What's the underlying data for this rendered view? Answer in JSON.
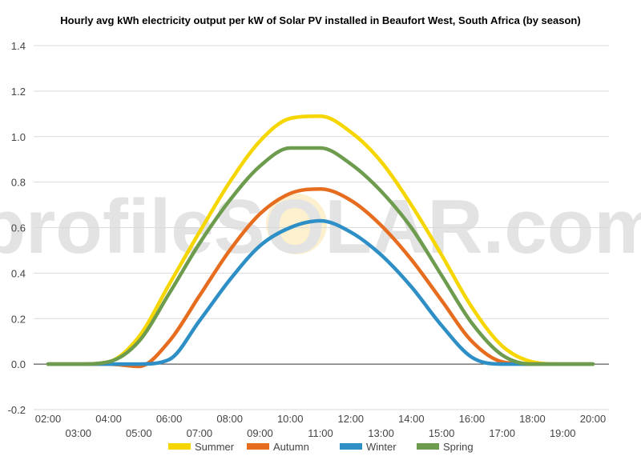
{
  "chart_data": {
    "type": "line",
    "title": "Hourly avg kWh electricity output per kW of Solar PV installed in Beaufort West, South Africa (by season)",
    "watermark": "profileSOLAR.com",
    "x_labels": [
      "02:00",
      "03:00",
      "04:00",
      "05:00",
      "06:00",
      "07:00",
      "08:00",
      "09:00",
      "10:00",
      "11:00",
      "12:00",
      "13:00",
      "14:00",
      "15:00",
      "16:00",
      "17:00",
      "18:00",
      "19:00",
      "20:00"
    ],
    "y_ticks": [
      "1.4",
      "1.2",
      "1.0",
      "0.8",
      "0.6",
      "0.4",
      "0.2",
      "0.0",
      "-0.2"
    ],
    "ylim": [
      -0.2,
      1.4
    ],
    "legend_position": "bottom",
    "grid": true,
    "series": [
      {
        "name": "Summer",
        "color": "#f6d600",
        "values": [
          0,
          0,
          0.01,
          0.12,
          0.35,
          0.58,
          0.8,
          0.98,
          1.08,
          1.09,
          1.02,
          0.89,
          0.7,
          0.48,
          0.25,
          0.08,
          0.01,
          0,
          0
        ]
      },
      {
        "name": "Autumn",
        "color": "#e66d20",
        "values": [
          0,
          0,
          0,
          -0.01,
          0.1,
          0.3,
          0.5,
          0.66,
          0.75,
          0.77,
          0.72,
          0.61,
          0.46,
          0.28,
          0.1,
          0.01,
          0,
          0,
          0
        ]
      },
      {
        "name": "Winter",
        "color": "#2e8fc6",
        "values": [
          0,
          0,
          0,
          0,
          0.02,
          0.19,
          0.37,
          0.52,
          0.6,
          0.63,
          0.58,
          0.48,
          0.34,
          0.17,
          0.03,
          0,
          0,
          0,
          0
        ]
      },
      {
        "name": "Spring",
        "color": "#6e9c4e",
        "values": [
          0,
          0,
          0.01,
          0.1,
          0.31,
          0.53,
          0.72,
          0.87,
          0.95,
          0.95,
          0.88,
          0.76,
          0.6,
          0.39,
          0.18,
          0.04,
          0,
          0,
          0
        ]
      }
    ]
  }
}
